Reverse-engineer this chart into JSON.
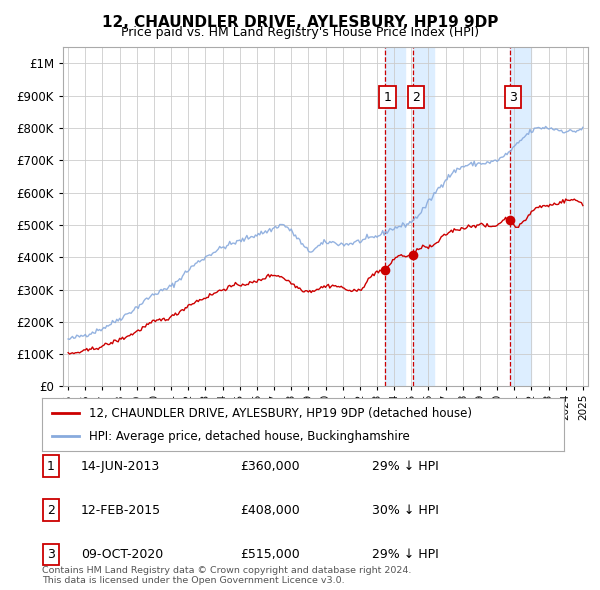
{
  "title": "12, CHAUNDLER DRIVE, AYLESBURY, HP19 9DP",
  "subtitle": "Price paid vs. HM Land Registry's House Price Index (HPI)",
  "footer1": "Contains HM Land Registry data © Crown copyright and database right 2024.",
  "footer2": "This data is licensed under the Open Government Licence v3.0.",
  "legend_red": "12, CHAUNDLER DRIVE, AYLESBURY, HP19 9DP (detached house)",
  "legend_blue": "HPI: Average price, detached house, Buckinghamshire",
  "sales": [
    {
      "num": 1,
      "date": "14-JUN-2013",
      "price": "£360,000",
      "pct": "29% ↓ HPI",
      "year": 2013.45
    },
    {
      "num": 2,
      "date": "12-FEB-2015",
      "price": "£408,000",
      "pct": "30% ↓ HPI",
      "year": 2015.12
    },
    {
      "num": 3,
      "date": "09-OCT-2020",
      "price": "£515,000",
      "pct": "29% ↓ HPI",
      "year": 2020.78
    }
  ],
  "sale_prices": [
    360000,
    408000,
    515000
  ],
  "ylim_max": 1050000,
  "xlim_start": 1994.7,
  "xlim_end": 2025.3,
  "red_color": "#cc0000",
  "blue_color": "#88aadd",
  "shade_color": "#ddeeff",
  "grid_color": "#cccccc",
  "bg_color": "#ffffff"
}
